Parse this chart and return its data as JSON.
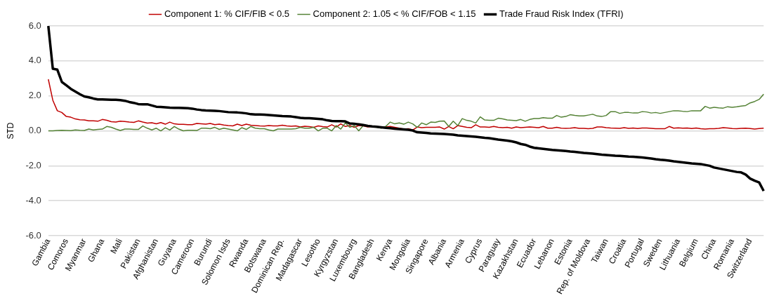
{
  "chart_data": {
    "type": "line",
    "ylabel": "STD",
    "legend": "top",
    "grid": "y",
    "marker": "none",
    "line_style": "solid",
    "categories": [
      "Gambia",
      null,
      null,
      null,
      "Comoros",
      null,
      null,
      null,
      "Myanmar",
      null,
      null,
      null,
      "Ghana",
      null,
      null,
      null,
      "Mali",
      null,
      null,
      null,
      "Pakistan",
      null,
      null,
      null,
      "Afghanistan",
      null,
      null,
      null,
      "Guyana",
      null,
      null,
      null,
      "Cameroon",
      null,
      null,
      null,
      "Burundi",
      null,
      null,
      null,
      "Solomon Isds",
      null,
      null,
      null,
      "Rwanda",
      null,
      null,
      null,
      "Botswana",
      null,
      null,
      null,
      "Dominican Rep.",
      null,
      null,
      null,
      "Madagascar",
      null,
      null,
      null,
      "Lesotho",
      null,
      null,
      null,
      "Kyrgyzstan",
      null,
      null,
      null,
      "Luxembourg",
      null,
      null,
      null,
      "Bangladesh",
      null,
      null,
      null,
      "Kenya",
      null,
      null,
      null,
      "Mongolia",
      null,
      null,
      null,
      "Singapore",
      null,
      null,
      null,
      "Albania",
      null,
      null,
      null,
      "Armenia",
      null,
      null,
      null,
      "Cyprus",
      null,
      null,
      null,
      "Paraguay",
      null,
      null,
      null,
      "Kazakhstan",
      null,
      null,
      null,
      "Ecuador",
      null,
      null,
      null,
      "Lebanon",
      null,
      null,
      null,
      "Estonia",
      null,
      null,
      null,
      "Rep. of Moldova",
      null,
      null,
      null,
      "Taiwan",
      null,
      null,
      null,
      "Croatia",
      null,
      null,
      null,
      "Portugal",
      null,
      null,
      null,
      "Sweden",
      null,
      null,
      null,
      "Lithuania",
      null,
      null,
      null,
      "Belgium",
      null,
      null,
      null,
      "China",
      null,
      null,
      null,
      "Romania",
      null,
      null,
      null,
      "Switzerland",
      null,
      null,
      null
    ],
    "ylim": [
      -6,
      6
    ],
    "yticks": [
      {
        "value": -6,
        "label": "-6.0"
      },
      {
        "value": -4,
        "label": "-4.0"
      },
      {
        "value": -2,
        "label": "-2.0"
      },
      {
        "value": 0,
        "label": "0.0"
      },
      {
        "value": 2,
        "label": "2.0"
      },
      {
        "value": 4,
        "label": "4.0"
      },
      {
        "value": 6,
        "label": "6.0"
      }
    ],
    "series": [
      {
        "name": "Component 1: % CIF/FIB < 0.5",
        "color": "#c00000",
        "values": [
          2.95,
          1.75,
          1.15,
          1.05,
          0.82,
          0.78,
          0.68,
          0.63,
          0.62,
          0.57,
          0.57,
          0.55,
          0.65,
          0.6,
          0.52,
          0.5,
          0.55,
          0.53,
          0.5,
          0.48,
          0.57,
          0.5,
          0.44,
          0.46,
          0.4,
          0.47,
          0.38,
          0.5,
          0.4,
          0.37,
          0.37,
          0.35,
          0.35,
          0.42,
          0.4,
          0.38,
          0.42,
          0.35,
          0.38,
          0.33,
          0.3,
          0.28,
          0.38,
          0.3,
          0.38,
          0.32,
          0.3,
          0.28,
          0.27,
          0.3,
          0.28,
          0.28,
          0.32,
          0.28,
          0.26,
          0.28,
          0.22,
          0.26,
          0.24,
          0.2,
          0.28,
          0.24,
          0.22,
          0.35,
          0.22,
          0.4,
          0.25,
          0.3,
          0.2,
          0.3,
          0.28,
          0.22,
          0.25,
          0.22,
          0.2,
          0.22,
          0.25,
          0.2,
          0.15,
          0.1,
          0.12,
          0.05,
          0.22,
          0.18,
          0.2,
          0.2,
          0.2,
          0.22,
          0.1,
          0.25,
          0.12,
          0.3,
          0.25,
          0.2,
          0.18,
          0.35,
          0.22,
          0.22,
          0.2,
          0.25,
          0.2,
          0.18,
          0.2,
          0.15,
          0.22,
          0.18,
          0.2,
          0.22,
          0.2,
          0.18,
          0.25,
          0.15,
          0.15,
          0.2,
          0.15,
          0.14,
          0.15,
          0.18,
          0.14,
          0.14,
          0.12,
          0.14,
          0.22,
          0.22,
          0.18,
          0.16,
          0.15,
          0.14,
          0.18,
          0.14,
          0.16,
          0.13,
          0.16,
          0.16,
          0.14,
          0.12,
          0.12,
          0.12,
          0.25,
          0.15,
          0.17,
          0.15,
          0.16,
          0.13,
          0.16,
          0.12,
          0.1,
          0.12,
          0.12,
          0.14,
          0.18,
          0.16,
          0.13,
          0.12,
          0.14,
          0.15,
          0.13,
          0.1,
          0.13,
          0.15
        ]
      },
      {
        "name": "Component 2: 1.05 < % CIF/FOB < 1.15",
        "color": "#548235",
        "values": [
          0,
          0,
          0.02,
          0.03,
          0.02,
          0.01,
          0.05,
          0.03,
          0.02,
          0.1,
          0.05,
          0.08,
          0.1,
          0.25,
          0.2,
          0.1,
          0.02,
          0.1,
          0.1,
          0.08,
          0.08,
          0.28,
          0.15,
          0.05,
          0.15,
          0,
          0.18,
          0.05,
          0.25,
          0.1,
          0,
          0.03,
          0.03,
          0.02,
          0.15,
          0.15,
          0.12,
          0.2,
          0.08,
          0.15,
          0.1,
          0.05,
          0,
          0.18,
          0.08,
          0.25,
          0.15,
          0.12,
          0.12,
          0.05,
          0,
          0.1,
          0.1,
          0.1,
          0.1,
          0.12,
          0.2,
          0.15,
          0.15,
          0.2,
          0,
          0.15,
          0.15,
          0,
          0.3,
          0.1,
          0.45,
          0.2,
          0.3,
          0,
          0.3,
          0.28,
          0.25,
          0.2,
          0.15,
          0.25,
          0.5,
          0.4,
          0.45,
          0.38,
          0.5,
          0.4,
          0.2,
          0.45,
          0.35,
          0.5,
          0.48,
          0.55,
          0.56,
          0.25,
          0.55,
          0.3,
          0.7,
          0.6,
          0.55,
          0.45,
          0.8,
          0.62,
          0.6,
          0.6,
          0.72,
          0.68,
          0.62,
          0.6,
          0.58,
          0.65,
          0.55,
          0.65,
          0.7,
          0.7,
          0.75,
          0.72,
          0.72,
          0.88,
          0.78,
          0.82,
          0.92,
          0.88,
          0.85,
          0.85,
          0.9,
          0.95,
          0.85,
          0.82,
          0.88,
          1.1,
          1.1,
          1,
          1.05,
          1.05,
          1.02,
          1.02,
          1.1,
          1.08,
          1.02,
          1.05,
          1,
          1.05,
          1.1,
          1.15,
          1.15,
          1.12,
          1.1,
          1.15,
          1.15,
          1.15,
          1.4,
          1.3,
          1.35,
          1.32,
          1.3,
          1.38,
          1.35,
          1.38,
          1.42,
          1.45,
          1.6,
          1.68,
          1.8,
          2.1
        ]
      },
      {
        "name": "Trade Fraud Risk Index (TFRI)",
        "color": "#000000",
        "values": [
          6,
          3.55,
          3.5,
          2.8,
          2.6,
          2.4,
          2.25,
          2.1,
          1.97,
          1.92,
          1.85,
          1.8,
          1.8,
          1.79,
          1.78,
          1.78,
          1.76,
          1.72,
          1.65,
          1.6,
          1.53,
          1.52,
          1.52,
          1.45,
          1.38,
          1.37,
          1.35,
          1.33,
          1.32,
          1.32,
          1.31,
          1.3,
          1.27,
          1.22,
          1.19,
          1.17,
          1.16,
          1.15,
          1.13,
          1.1,
          1.07,
          1.06,
          1.05,
          1.03,
          1,
          0.95,
          0.93,
          0.93,
          0.92,
          0.9,
          0.88,
          0.86,
          0.84,
          0.83,
          0.82,
          0.78,
          0.74,
          0.72,
          0.72,
          0.7,
          0.68,
          0.66,
          0.6,
          0.56,
          0.55,
          0.55,
          0.54,
          0.42,
          0.4,
          0.37,
          0.33,
          0.28,
          0.25,
          0.23,
          0.2,
          0.17,
          0.15,
          0.12,
          0.1,
          0.08,
          0.06,
          0.02,
          -0.08,
          -0.1,
          -0.12,
          -0.15,
          -0.16,
          -0.17,
          -0.18,
          -0.2,
          -0.22,
          -0.26,
          -0.28,
          -0.3,
          -0.32,
          -0.34,
          -0.37,
          -0.4,
          -0.42,
          -0.46,
          -0.5,
          -0.53,
          -0.56,
          -0.6,
          -0.66,
          -0.75,
          -0.8,
          -0.9,
          -0.97,
          -1,
          -1.03,
          -1.06,
          -1.09,
          -1.11,
          -1.13,
          -1.15,
          -1.18,
          -1.2,
          -1.23,
          -1.26,
          -1.28,
          -1.3,
          -1.33,
          -1.36,
          -1.38,
          -1.4,
          -1.42,
          -1.43,
          -1.45,
          -1.47,
          -1.48,
          -1.5,
          -1.52,
          -1.55,
          -1.58,
          -1.62,
          -1.65,
          -1.67,
          -1.7,
          -1.74,
          -1.77,
          -1.8,
          -1.83,
          -1.86,
          -1.88,
          -1.9,
          -1.95,
          -2,
          -2.1,
          -2.15,
          -2.2,
          -2.25,
          -2.3,
          -2.35,
          -2.38,
          -2.5,
          -2.73,
          -2.85,
          -2.95,
          -3.44
        ]
      }
    ]
  }
}
